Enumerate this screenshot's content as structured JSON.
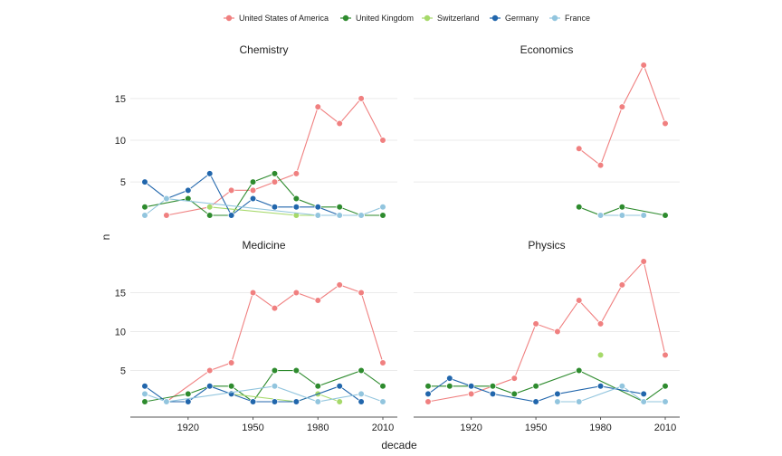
{
  "chart_data": {
    "type": "line",
    "xlabel": "decade",
    "ylabel": "n",
    "x_ticks": [
      1920,
      1950,
      1980,
      2010
    ],
    "y_ticks": [
      5,
      10,
      15
    ],
    "xlim": [
      1900,
      2010
    ],
    "ylim": [
      1,
      19
    ],
    "grid": true,
    "legend_position": "top",
    "legend": [
      {
        "name": "United States of America",
        "color": "#f08080"
      },
      {
        "name": "United Kingdom",
        "color": "#2e8b2e"
      },
      {
        "name": "Switzerland",
        "color": "#a6d96a"
      },
      {
        "name": "Germany",
        "color": "#2166ac"
      },
      {
        "name": "France",
        "color": "#92c5de"
      }
    ],
    "panels": [
      {
        "title": "Chemistry",
        "series": [
          {
            "name": "United States of America",
            "points": [
              [
                1910,
                1
              ],
              [
                1930,
                2
              ],
              [
                1940,
                4
              ],
              [
                1950,
                4
              ],
              [
                1960,
                5
              ],
              [
                1970,
                6
              ],
              [
                1980,
                14
              ],
              [
                1990,
                12
              ],
              [
                2000,
                15
              ],
              [
                2010,
                10
              ]
            ]
          },
          {
            "name": "United Kingdom",
            "points": [
              [
                1900,
                2
              ],
              [
                1920,
                3
              ],
              [
                1930,
                1
              ],
              [
                1940,
                1
              ],
              [
                1950,
                5
              ],
              [
                1960,
                6
              ],
              [
                1970,
                3
              ],
              [
                1980,
                2
              ],
              [
                1990,
                2
              ],
              [
                2000,
                1
              ],
              [
                2010,
                1
              ]
            ]
          },
          {
            "name": "Switzerland",
            "points": [
              [
                1930,
                2
              ],
              [
                1970,
                1
              ],
              [
                1980,
                1
              ],
              [
                1990,
                1
              ]
            ]
          },
          {
            "name": "Germany",
            "points": [
              [
                1900,
                5
              ],
              [
                1910,
                3
              ],
              [
                1920,
                4
              ],
              [
                1930,
                6
              ],
              [
                1940,
                1
              ],
              [
                1950,
                3
              ],
              [
                1960,
                2
              ],
              [
                1970,
                2
              ],
              [
                1980,
                2
              ],
              [
                1990,
                1
              ],
              [
                2000,
                1
              ]
            ]
          },
          {
            "name": "France",
            "points": [
              [
                1900,
                1
              ],
              [
                1910,
                3
              ],
              [
                1980,
                1
              ],
              [
                1990,
                1
              ],
              [
                2000,
                1
              ],
              [
                2010,
                2
              ]
            ]
          }
        ]
      },
      {
        "title": "Economics",
        "series": [
          {
            "name": "United States of America",
            "points": [
              [
                1970,
                9
              ],
              [
                1980,
                7
              ],
              [
                1990,
                14
              ],
              [
                2000,
                19
              ],
              [
                2010,
                12
              ]
            ]
          },
          {
            "name": "United Kingdom",
            "points": [
              [
                1970,
                2
              ],
              [
                1980,
                1
              ],
              [
                1990,
                2
              ],
              [
                2010,
                1
              ]
            ]
          },
          {
            "name": "Germany",
            "points": [
              [
                1990,
                1
              ]
            ]
          },
          {
            "name": "France",
            "points": [
              [
                1980,
                1
              ],
              [
                1990,
                1
              ],
              [
                2000,
                1
              ]
            ]
          }
        ]
      },
      {
        "title": "Medicine",
        "series": [
          {
            "name": "United States of America",
            "points": [
              [
                1910,
                1
              ],
              [
                1930,
                5
              ],
              [
                1940,
                6
              ],
              [
                1950,
                15
              ],
              [
                1960,
                13
              ],
              [
                1970,
                15
              ],
              [
                1980,
                14
              ],
              [
                1990,
                16
              ],
              [
                2000,
                15
              ],
              [
                2010,
                6
              ]
            ]
          },
          {
            "name": "United Kingdom",
            "points": [
              [
                1900,
                1
              ],
              [
                1920,
                2
              ],
              [
                1930,
                3
              ],
              [
                1940,
                3
              ],
              [
                1950,
                1
              ],
              [
                1960,
                5
              ],
              [
                1970,
                5
              ],
              [
                1980,
                3
              ],
              [
                2000,
                5
              ],
              [
                2010,
                3
              ]
            ]
          },
          {
            "name": "Switzerland",
            "points": [
              [
                1940,
                2
              ],
              [
                1970,
                1
              ],
              [
                1980,
                2
              ],
              [
                1990,
                1
              ]
            ]
          },
          {
            "name": "Germany",
            "points": [
              [
                1900,
                3
              ],
              [
                1910,
                1
              ],
              [
                1920,
                1
              ],
              [
                1930,
                3
              ],
              [
                1940,
                2
              ],
              [
                1950,
                1
              ],
              [
                1960,
                1
              ],
              [
                1970,
                1
              ],
              [
                1990,
                3
              ],
              [
                2000,
                1
              ]
            ]
          },
          {
            "name": "France",
            "points": [
              [
                1900,
                2
              ],
              [
                1910,
                1
              ],
              [
                1960,
                3
              ],
              [
                1980,
                1
              ],
              [
                2000,
                2
              ],
              [
                2010,
                1
              ]
            ]
          }
        ]
      },
      {
        "title": "Physics",
        "series": [
          {
            "name": "United States of America",
            "points": [
              [
                1900,
                1
              ],
              [
                1920,
                2
              ],
              [
                1930,
                3
              ],
              [
                1940,
                4
              ],
              [
                1950,
                11
              ],
              [
                1960,
                10
              ],
              [
                1970,
                14
              ],
              [
                1980,
                11
              ],
              [
                1990,
                16
              ],
              [
                2000,
                19
              ],
              [
                2010,
                7
              ]
            ]
          },
          {
            "name": "United Kingdom",
            "points": [
              [
                1900,
                3
              ],
              [
                1910,
                3
              ],
              [
                1930,
                3
              ],
              [
                1940,
                2
              ],
              [
                1950,
                3
              ],
              [
                1970,
                5
              ],
              [
                2000,
                1
              ],
              [
                2010,
                3
              ]
            ]
          },
          {
            "name": "Switzerland",
            "points": [
              [
                1980,
                7
              ]
            ]
          },
          {
            "name": "Germany",
            "points": [
              [
                1900,
                2
              ],
              [
                1910,
                4
              ],
              [
                1920,
                3
              ],
              [
                1930,
                2
              ],
              [
                1950,
                1
              ],
              [
                1960,
                2
              ],
              [
                1980,
                3
              ],
              [
                2000,
                2
              ]
            ]
          },
          {
            "name": "France",
            "points": [
              [
                1960,
                1
              ],
              [
                1970,
                1
              ],
              [
                1990,
                3
              ],
              [
                2000,
                1
              ],
              [
                2010,
                1
              ]
            ]
          }
        ]
      }
    ]
  }
}
